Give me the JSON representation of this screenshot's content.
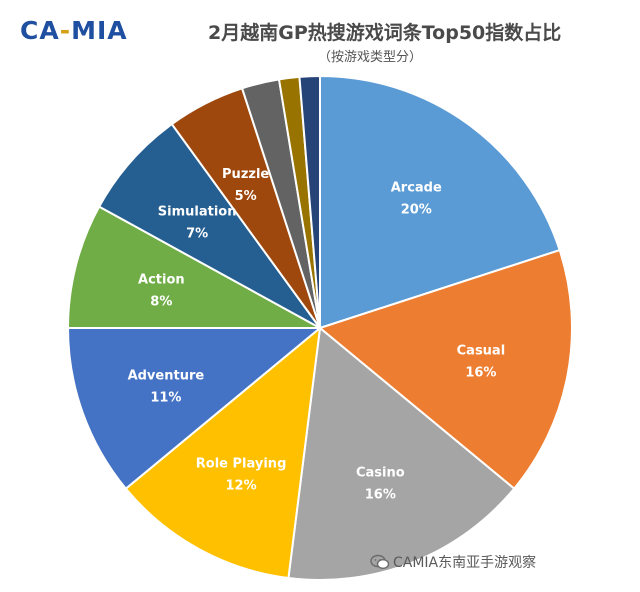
{
  "header": {
    "logo": {
      "part1": "CA",
      "dash": "-",
      "part2": "MIA"
    },
    "title": "2月越南GP热搜游戏词条Top50指数占比",
    "subtitle": "（按游戏类型分）"
  },
  "watermark": {
    "text": "CAMIA东南亚手游观察",
    "icon": "wechat-icon"
  },
  "chart_data": {
    "type": "pie",
    "title": "2月越南GP热搜游戏词条Top50指数占比",
    "subtitle": "（按游戏类型分）",
    "slices": [
      {
        "name": "Arcade",
        "value": 20,
        "label": "20%",
        "color": "#5b9bd5",
        "text_color": "#ffffff"
      },
      {
        "name": "Casual",
        "value": 16,
        "label": "16%",
        "color": "#ed7d31",
        "text_color": "#ffffff"
      },
      {
        "name": "Casino",
        "value": 16,
        "label": "16%",
        "color": "#a5a5a5",
        "text_color": "#ffffff"
      },
      {
        "name": "Role Playing",
        "value": 12,
        "label": "12%",
        "color": "#ffc000",
        "text_color": "#ffffff"
      },
      {
        "name": "Adventure",
        "value": 11,
        "label": "11%",
        "color": "#4472c4",
        "text_color": "#ffffff"
      },
      {
        "name": "Action",
        "value": 8,
        "label": "8%",
        "color": "#70ad47",
        "text_color": "#ffffff"
      },
      {
        "name": "Simulation",
        "value": 7,
        "label": "7%",
        "color": "#255e91",
        "text_color": "#ffffff"
      },
      {
        "name": "Puzzle",
        "value": 5,
        "label": "5%",
        "color": "#9e480e",
        "text_color": "#ffffff"
      },
      {
        "name": "",
        "value": 2.4,
        "label": "",
        "color": "#636363"
      },
      {
        "name": "",
        "value": 1.3,
        "label": "",
        "color": "#997300"
      },
      {
        "name": "",
        "value": 1.3,
        "label": "",
        "color": "#264478"
      }
    ],
    "legend": "none"
  }
}
